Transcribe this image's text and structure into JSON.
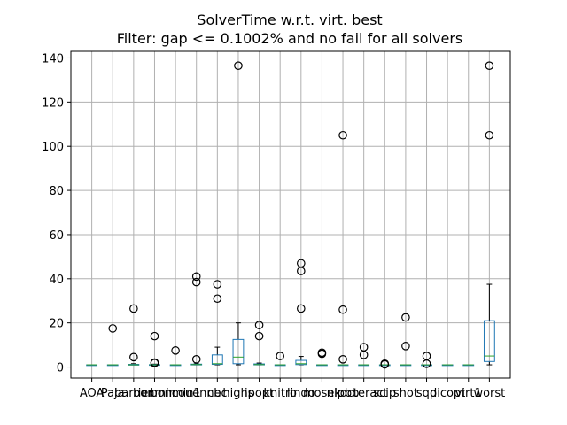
{
  "chart_data": {
    "type": "box",
    "title": "SolverTime w.r.t. virt. best",
    "subtitle": "Filter: gap <= 0.1002% and no fail for all solvers",
    "xlabel": "",
    "ylabel": "",
    "ylim": [
      -5,
      143
    ],
    "yticks": [
      0,
      20,
      40,
      60,
      80,
      100,
      120,
      140
    ],
    "grid": true,
    "colors": {
      "box": "#1f77b4",
      "median": "#2ca02c",
      "whisker": "#000000",
      "grid": "#b0b0b0"
    },
    "categories": [
      "AOA",
      "Paja",
      "barrier",
      "bonmin",
      "bonmin1",
      "couenne",
      "cbc",
      "highs",
      "ipopt",
      "knitro",
      "lindo",
      "mosek",
      "nlpbb",
      "octeract",
      "scip",
      "shot",
      "sqp",
      "dicopt",
      "virt1",
      "worst"
    ],
    "boxes": [
      {
        "whislo": 1,
        "q1": 1,
        "med": 1,
        "q3": 1,
        "whishi": 1,
        "fliers": []
      },
      {
        "whislo": 1,
        "q1": 1,
        "med": 1,
        "q3": 1,
        "whishi": 1,
        "fliers": [
          17.5
        ]
      },
      {
        "whislo": 1,
        "q1": 1,
        "med": 1,
        "q3": 1.2,
        "whishi": 1.5,
        "fliers": [
          26.5,
          4.5
        ]
      },
      {
        "whislo": 1,
        "q1": 1,
        "med": 1,
        "q3": 1.1,
        "whishi": 1.3,
        "fliers": [
          14,
          2,
          1.8
        ]
      },
      {
        "whislo": 1,
        "q1": 1,
        "med": 1,
        "q3": 1,
        "whishi": 1,
        "fliers": [
          7.5
        ]
      },
      {
        "whislo": 1,
        "q1": 1,
        "med": 1.1,
        "q3": 1.3,
        "whishi": 1.5,
        "fliers": [
          41,
          38.5,
          3.5
        ]
      },
      {
        "whislo": 1,
        "q1": 1.2,
        "med": 1.5,
        "q3": 5.5,
        "whishi": 9,
        "fliers": [
          37.5,
          31
        ]
      },
      {
        "whislo": 1,
        "q1": 1.5,
        "med": 4.5,
        "q3": 12.5,
        "whishi": 20,
        "fliers": [
          136.5
        ]
      },
      {
        "whislo": 1,
        "q1": 1,
        "med": 1.1,
        "q3": 1.4,
        "whishi": 1.8,
        "fliers": [
          19,
          14
        ]
      },
      {
        "whislo": 1,
        "q1": 1,
        "med": 1,
        "q3": 1,
        "whishi": 1,
        "fliers": [
          5
        ]
      },
      {
        "whislo": 1,
        "q1": 1.1,
        "med": 1.5,
        "q3": 3,
        "whishi": 4.8,
        "fliers": [
          47,
          43.5,
          26.5
        ]
      },
      {
        "whislo": 1,
        "q1": 1,
        "med": 1,
        "q3": 1,
        "whishi": 1,
        "fliers": [
          6.5,
          6
        ]
      },
      {
        "whislo": 1,
        "q1": 1,
        "med": 1,
        "q3": 1,
        "whishi": 1,
        "fliers": [
          105,
          26,
          3.5
        ]
      },
      {
        "whislo": 1,
        "q1": 1,
        "med": 1,
        "q3": 1,
        "whishi": 1,
        "fliers": [
          9,
          5.5
        ]
      },
      {
        "whislo": 1,
        "q1": 1,
        "med": 1,
        "q3": 1,
        "whishi": 1,
        "fliers": [
          1.5,
          1.2
        ]
      },
      {
        "whislo": 1,
        "q1": 1,
        "med": 1,
        "q3": 1,
        "whishi": 1,
        "fliers": [
          22.5,
          9.5
        ]
      },
      {
        "whislo": 1,
        "q1": 1,
        "med": 1,
        "q3": 1,
        "whishi": 1,
        "fliers": [
          5,
          1.5
        ]
      },
      {
        "whislo": 1,
        "q1": 1,
        "med": 1,
        "q3": 1,
        "whishi": 1,
        "fliers": []
      },
      {
        "whislo": 1,
        "q1": 1,
        "med": 1,
        "q3": 1,
        "whishi": 1,
        "fliers": []
      },
      {
        "whislo": 1,
        "q1": 2.5,
        "med": 5,
        "q3": 21,
        "whishi": 37.5,
        "fliers": [
          136.5,
          105
        ]
      }
    ]
  }
}
